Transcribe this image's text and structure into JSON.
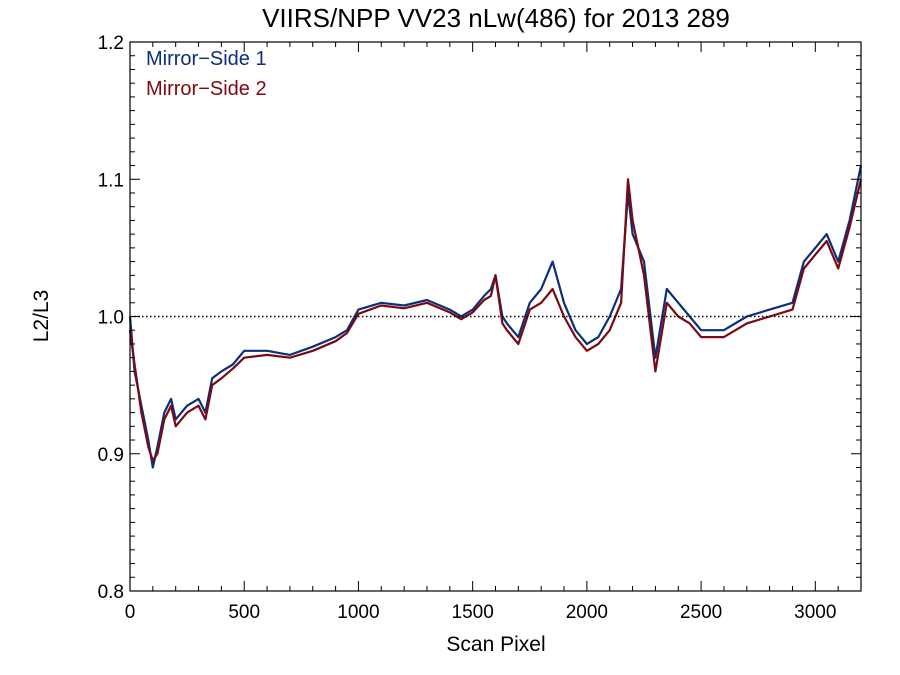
{
  "chart_data": {
    "type": "line",
    "title": "VIIRS/NPP VV23 nLw(486) for 2013 289",
    "xlabel": "Scan Pixel",
    "ylabel": "L2/L3",
    "xlim": [
      0,
      3200
    ],
    "ylim": [
      0.8,
      1.2
    ],
    "x_ticks": [
      0,
      500,
      1000,
      1500,
      2000,
      2500,
      3000
    ],
    "y_ticks": [
      0.8,
      0.9,
      1.0,
      1.1,
      1.2
    ],
    "y_tick_labels": [
      "0.8",
      "0.9",
      "1.0",
      "1.1",
      "1.2"
    ],
    "reference_line": {
      "y": 1.0,
      "style": "dotted"
    },
    "legend_position": "top-left",
    "grid": false,
    "series": [
      {
        "name": "Mirror−Side 1",
        "color": "#0b2f7a",
        "x": [
          0,
          20,
          50,
          80,
          100,
          120,
          150,
          180,
          200,
          250,
          300,
          330,
          360,
          400,
          450,
          500,
          600,
          700,
          800,
          900,
          950,
          1000,
          1100,
          1200,
          1300,
          1400,
          1450,
          1500,
          1550,
          1580,
          1600,
          1630,
          1650,
          1700,
          1750,
          1800,
          1850,
          1900,
          1950,
          2000,
          2050,
          2100,
          2150,
          2180,
          2200,
          2250,
          2300,
          2350,
          2400,
          2450,
          2500,
          2600,
          2700,
          2800,
          2900,
          2950,
          3000,
          3050,
          3100,
          3150,
          3200
        ],
        "y": [
          1.0,
          0.96,
          0.935,
          0.91,
          0.89,
          0.905,
          0.93,
          0.94,
          0.925,
          0.935,
          0.94,
          0.93,
          0.955,
          0.96,
          0.965,
          0.975,
          0.975,
          0.972,
          0.978,
          0.985,
          0.99,
          1.005,
          1.01,
          1.008,
          1.012,
          1.005,
          1.0,
          1.005,
          1.015,
          1.02,
          1.03,
          1.0,
          0.995,
          0.985,
          1.01,
          1.02,
          1.04,
          1.01,
          0.99,
          0.98,
          0.985,
          1.0,
          1.02,
          1.09,
          1.06,
          1.04,
          0.97,
          1.02,
          1.01,
          1.0,
          0.99,
          0.99,
          1.0,
          1.005,
          1.01,
          1.04,
          1.05,
          1.06,
          1.04,
          1.07,
          1.11
        ]
      },
      {
        "name": "Mirror−Side 2",
        "color": "#7a0a10",
        "x": [
          0,
          20,
          50,
          80,
          100,
          120,
          150,
          180,
          200,
          250,
          300,
          330,
          360,
          400,
          450,
          500,
          600,
          700,
          800,
          900,
          950,
          1000,
          1100,
          1200,
          1300,
          1400,
          1450,
          1500,
          1550,
          1580,
          1600,
          1630,
          1650,
          1700,
          1750,
          1800,
          1850,
          1900,
          1950,
          2000,
          2050,
          2100,
          2150,
          2180,
          2200,
          2250,
          2300,
          2350,
          2400,
          2450,
          2500,
          2600,
          2700,
          2800,
          2900,
          2950,
          3000,
          3050,
          3100,
          3150,
          3200
        ],
        "y": [
          0.99,
          0.965,
          0.93,
          0.905,
          0.895,
          0.9,
          0.925,
          0.935,
          0.92,
          0.93,
          0.935,
          0.925,
          0.95,
          0.955,
          0.962,
          0.97,
          0.972,
          0.97,
          0.975,
          0.982,
          0.988,
          1.002,
          1.008,
          1.006,
          1.01,
          1.003,
          0.998,
          1.003,
          1.012,
          1.015,
          1.03,
          0.995,
          0.99,
          0.98,
          1.005,
          1.01,
          1.02,
          1.0,
          0.985,
          0.975,
          0.98,
          0.99,
          1.01,
          1.1,
          1.07,
          1.03,
          0.96,
          1.01,
          1.0,
          0.995,
          0.985,
          0.985,
          0.995,
          1.0,
          1.005,
          1.035,
          1.045,
          1.055,
          1.035,
          1.065,
          1.1
        ]
      }
    ]
  }
}
